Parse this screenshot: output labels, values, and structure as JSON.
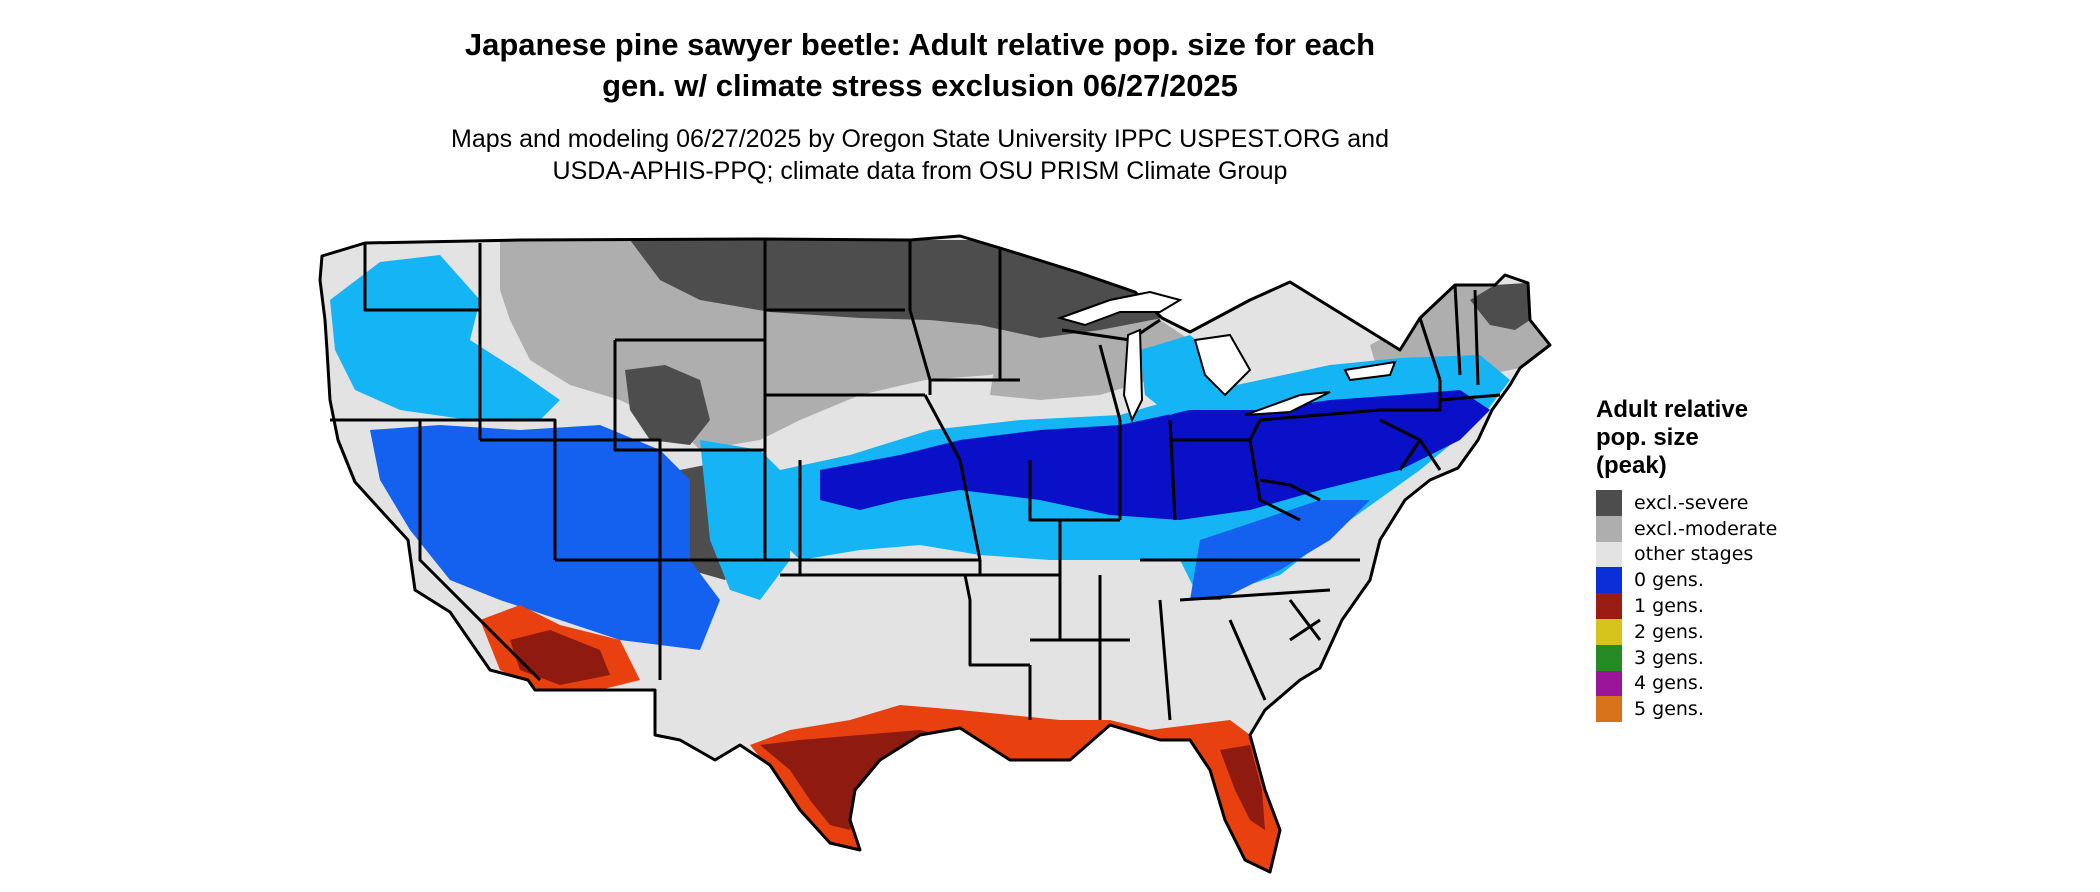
{
  "map": {
    "title_line1": "Japanese pine sawyer beetle: Adult relative pop. size for each",
    "title_line2": "gen. w/ climate stress exclusion 06/27/2025",
    "subtitle_line1": "Maps and modeling 06/27/2025 by Oregon State University IPPC USPEST.ORG and",
    "subtitle_line2": "USDA-APHIS-PPQ; climate data from OSU PRISM Climate Group",
    "region": "Contiguous United States with state boundaries"
  },
  "legend": {
    "title_line1": "Adult relative",
    "title_line2": "pop. size",
    "title_line3": "(peak)",
    "items": [
      {
        "label": "excl.-severe",
        "color": "#4d4d4d"
      },
      {
        "label": "excl.-moderate",
        "color": "#aeaeae"
      },
      {
        "label": "other stages",
        "color": "#e3e3e3"
      },
      {
        "label": "0 gens.",
        "color": "#0a2fd8"
      },
      {
        "label": "1 gens.",
        "color": "#9b1c12"
      },
      {
        "label": "2 gens.",
        "color": "#d6c31c"
      },
      {
        "label": "3 gens.",
        "color": "#258a24"
      },
      {
        "label": "4 gens.",
        "color": "#9b159b"
      },
      {
        "label": "5 gens.",
        "color": "#d8731c"
      }
    ]
  },
  "colors": {
    "severe": "#4d4d4d",
    "moderate": "#aeaeae",
    "other": "#e3e3e3",
    "light_blue": "#14b4f5",
    "mid_blue": "#1461f0",
    "dark_blue": "#0a0fc8",
    "red": "#e8400f",
    "dark_red": "#8e1a10",
    "border": "#000000"
  }
}
